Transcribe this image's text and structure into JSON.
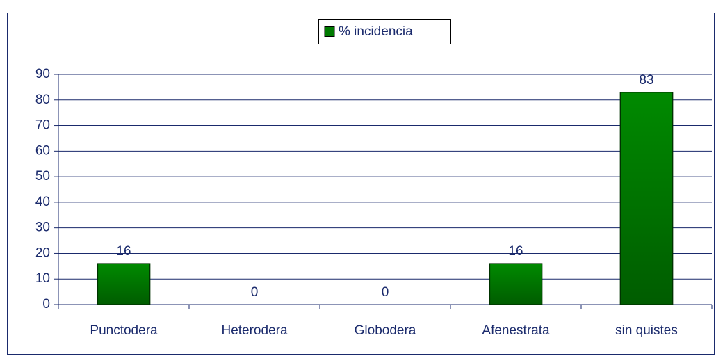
{
  "chart_data": {
    "type": "bar",
    "categories": [
      "Punctodera",
      "Heterodera",
      "Globodera",
      "Afenestrata",
      "sin quistes"
    ],
    "series": [
      {
        "name": "% incidencia",
        "color": "#007a00",
        "values": [
          16,
          0,
          0,
          16,
          83
        ]
      }
    ],
    "ylim": [
      0,
      90
    ],
    "yticks": [
      0,
      10,
      20,
      30,
      40,
      50,
      60,
      70,
      80,
      90
    ],
    "grid": true,
    "legend": "top"
  }
}
